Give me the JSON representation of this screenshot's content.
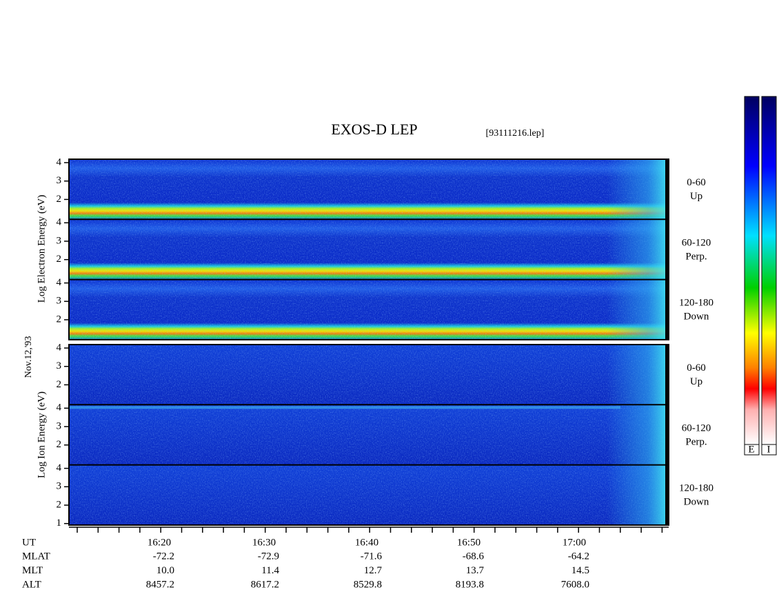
{
  "title": "EXOS-D LEP",
  "file": "[93111216.lep]",
  "date": "Nov.12,'93",
  "electron": {
    "axis_label": "Log Electron Energy (eV)",
    "panels": [
      {
        "angle": "0-60",
        "direction": "Up",
        "yticks": [
          2,
          3,
          4
        ]
      },
      {
        "angle": "60-120",
        "direction": "Perp.",
        "yticks": [
          2,
          3,
          4
        ]
      },
      {
        "angle": "120-180",
        "direction": "Down",
        "yticks": [
          2,
          3,
          4
        ]
      }
    ]
  },
  "ion": {
    "axis_label": "Log Ion Energy (eV)",
    "panels": [
      {
        "angle": "0-60",
        "direction": "Up",
        "yticks": [
          2,
          3,
          4
        ]
      },
      {
        "angle": "60-120",
        "direction": "Perp.",
        "yticks": [
          2,
          3,
          4
        ]
      },
      {
        "angle": "120-180",
        "direction": "Down",
        "yticks": [
          1,
          2,
          3,
          4
        ]
      }
    ]
  },
  "colorbar_labels": [
    "E",
    "I"
  ],
  "footer": {
    "row_labels": [
      "UT",
      "MLAT",
      "MLT",
      "ALT"
    ],
    "columns": [
      [
        "16:20",
        "-72.2",
        "10.0",
        "8457.2"
      ],
      [
        "16:30",
        "-72.9",
        "11.4",
        "8617.2"
      ],
      [
        "16:40",
        "-71.6",
        "12.7",
        "8529.8"
      ],
      [
        "16:50",
        "-68.6",
        "13.7",
        "8193.8"
      ],
      [
        "17:00",
        "-64.2",
        "14.5",
        "7608.0"
      ]
    ]
  }
}
